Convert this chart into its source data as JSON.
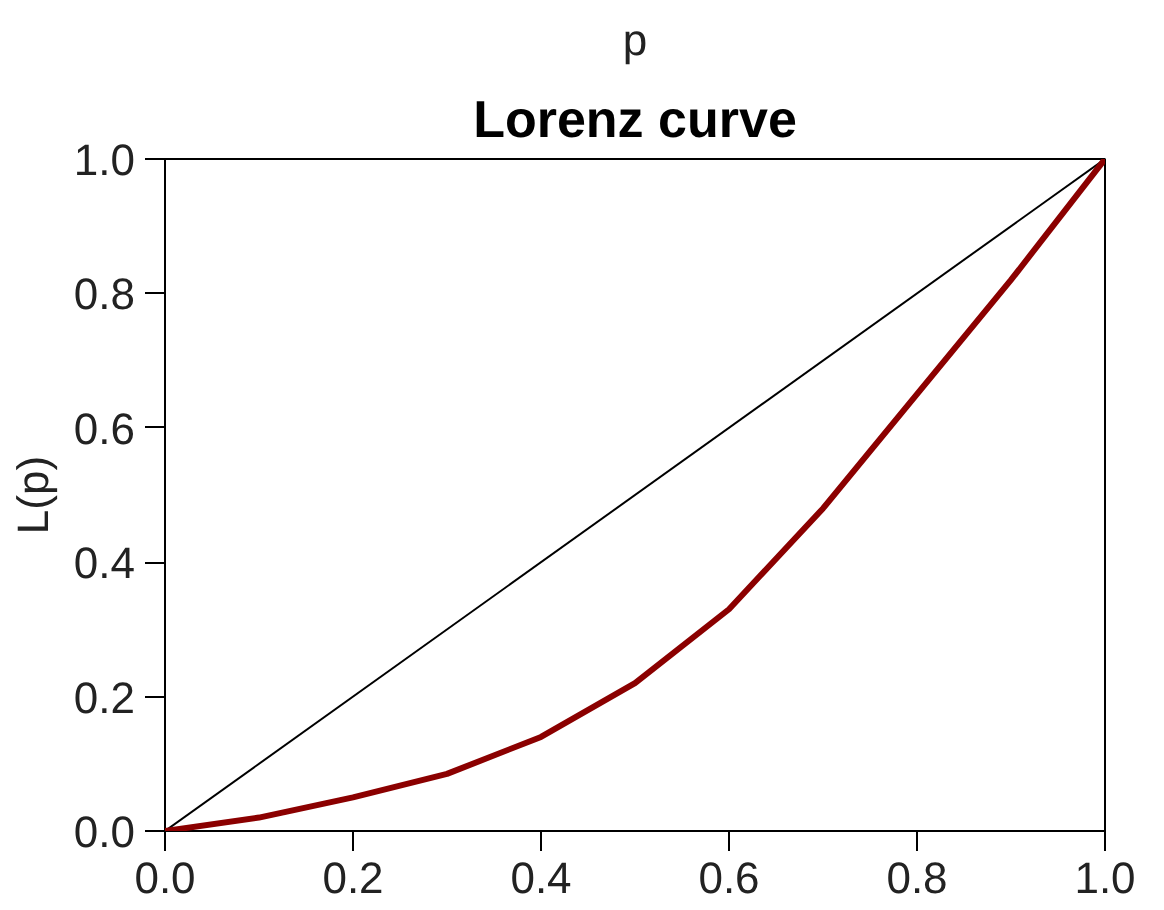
{
  "chart_data": {
    "type": "line",
    "title": "Lorenz curve",
    "xlabel": "p",
    "ylabel": "L(p)",
    "xlim": [
      0,
      1
    ],
    "ylim": [
      0,
      1
    ],
    "xticks": [
      {
        "value": 0,
        "label": "0.0"
      },
      {
        "value": 0.2,
        "label": "0.2"
      },
      {
        "value": 0.4,
        "label": "0.4"
      },
      {
        "value": 0.6,
        "label": "0.6"
      },
      {
        "value": 0.8,
        "label": "0.8"
      },
      {
        "value": 1,
        "label": "1.0"
      }
    ],
    "yticks": [
      {
        "value": 0,
        "label": "0.0"
      },
      {
        "value": 0.2,
        "label": "0.2"
      },
      {
        "value": 0.4,
        "label": "0.4"
      },
      {
        "value": 0.6,
        "label": "0.6"
      },
      {
        "value": 0.8,
        "label": "0.8"
      },
      {
        "value": 1,
        "label": "1.0"
      }
    ],
    "grid": false,
    "series": [
      {
        "color": "#000000",
        "x": [
          0,
          1
        ],
        "values": [
          0,
          1
        ]
      },
      {
        "color": "#8b0000",
        "x": [
          0,
          0.1,
          0.2,
          0.3,
          0.4,
          0.5,
          0.6,
          0.7,
          0.8,
          0.9,
          1
        ],
        "values": [
          0,
          0.02,
          0.05,
          0.085,
          0.14,
          0.22,
          0.33,
          0.48,
          0.65,
          0.82,
          1
        ]
      }
    ]
  }
}
